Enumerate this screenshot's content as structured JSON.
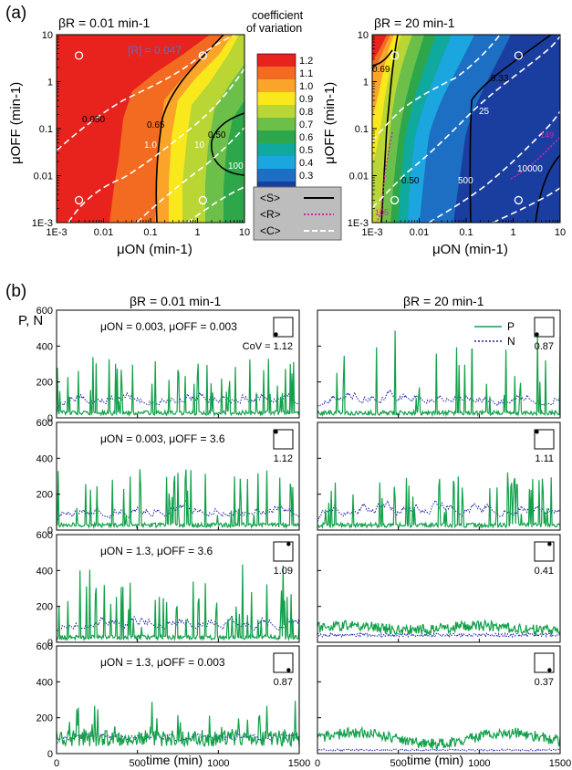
{
  "panel_labels": [
    "(a)",
    "(b)"
  ],
  "chart_data": [
    {
      "type": "heatmap",
      "panel": "(a)",
      "title": "βR = 0.01 min-1",
      "xlabel": "μON (min-1)",
      "ylabel": "μOFF (min-1)",
      "xscale": "log",
      "yscale": "log",
      "xlim": [
        0.001,
        10
      ],
      "ylim": [
        0.001,
        10
      ],
      "x_ticks": [
        "1E-3",
        "0.01",
        "0.1",
        "1",
        "10"
      ],
      "y_ticks": [
        "1E-3",
        "0.01",
        "0.1",
        "1",
        "10"
      ],
      "annotation": "[R] = 0.047",
      "contour_labels_S": [
        "0.65",
        "0.50"
      ],
      "contour_labels_C": [
        "0.050",
        "1.0",
        "10",
        "100"
      ],
      "marked_points": [
        [
          0.003,
          3.6
        ],
        [
          1.3,
          3.6
        ],
        [
          0.003,
          0.003
        ],
        [
          1.3,
          0.003
        ]
      ],
      "cov_at_marked_points": [
        1.12,
        1.09,
        1.12,
        0.87
      ]
    },
    {
      "type": "heatmap",
      "panel": "(a)",
      "title": "βR = 20 min-1",
      "xlabel": "μON (min-1)",
      "ylabel": "μOFF (min-1)",
      "xscale": "log",
      "yscale": "log",
      "xlim": [
        0.001,
        10
      ],
      "ylim": [
        0.001,
        10
      ],
      "x_ticks": [
        "1E-3",
        "0.01",
        "0.1",
        "1",
        "10"
      ],
      "y_ticks": [
        "1E-3",
        "0.01",
        "0.1",
        "1",
        "10"
      ],
      "contour_labels_S": [
        "0.69",
        "0.33",
        "0.50"
      ],
      "contour_labels_R": [
        "149",
        "105"
      ],
      "contour_labels_C": [
        "25",
        "500",
        "10000"
      ],
      "marked_points": [
        [
          0.003,
          3.6
        ],
        [
          1.3,
          3.6
        ],
        [
          0.003,
          0.003
        ],
        [
          1.3,
          0.003
        ]
      ],
      "cov_at_marked_points": [
        1.11,
        0.41,
        0.87,
        0.37
      ]
    },
    {
      "type": "line",
      "panel": "(b)",
      "columns": [
        "βR = 0.01 min-1",
        "βR = 20 min-1"
      ],
      "xlabel": "time  (min)",
      "ylabel": "P, N",
      "xlim": [
        0,
        1500
      ],
      "ylim": [
        0,
        600
      ],
      "x_ticks": [
        "0",
        "500",
        "1000",
        "1500"
      ],
      "y_ticks": [
        "0",
        "200",
        "400",
        "600"
      ],
      "legend": [
        "P",
        "N"
      ],
      "legend_position": "top-right",
      "series_colors": {
        "P": "#12a04a",
        "N": "#1a1aa8"
      },
      "rows": [
        {
          "label": "μON = 0.003, μOFF = 0.003",
          "cov_left": "CoV = 1.12",
          "cov_right": "0.87",
          "dot": [
            0.003,
            0.003
          ]
        },
        {
          "label": "μON = 0.003, μOFF = 3.6",
          "cov_left": "1.12",
          "cov_right": "1.11",
          "dot": [
            0.003,
            3.6
          ]
        },
        {
          "label": "μON = 1.3, μOFF = 3.6",
          "cov_left": "1.09",
          "cov_right": "0.41",
          "dot": [
            1.3,
            3.6
          ]
        },
        {
          "label": "μON = 1.3, μOFF = 0.003",
          "cov_left": "0.87",
          "cov_right": "0.37",
          "dot": [
            1.3,
            0.003
          ]
        }
      ]
    }
  ],
  "colorbar": {
    "title": "coefficient of variation",
    "ticks": [
      "1.2",
      "1.1",
      "1.0",
      "0.9",
      "0.8",
      "0.7",
      "0.6",
      "0.5",
      "0.4",
      "0.3"
    ],
    "colors": [
      "#e8221c",
      "#f26b21",
      "#fba42a",
      "#f9e81c",
      "#b9d635",
      "#6cc04a",
      "#2ea74a",
      "#10a99e",
      "#1ba6e0",
      "#1c6fc2",
      "#1a3ea0"
    ]
  },
  "legend_box": {
    "items": [
      "<S>",
      "<R>",
      "<C>"
    ],
    "styles": [
      "solid-black",
      "dotted-magenta",
      "dashed-white"
    ],
    "background": "#bdbdbd"
  }
}
